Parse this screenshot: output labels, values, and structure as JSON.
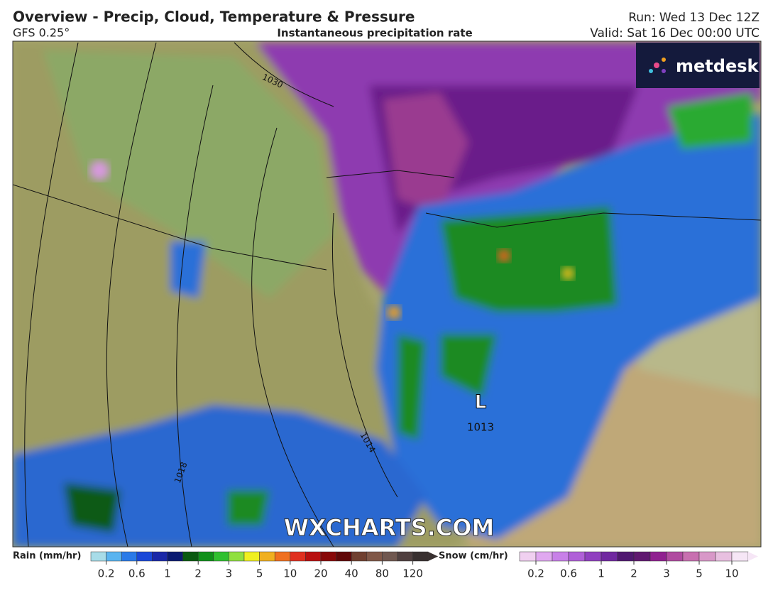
{
  "header": {
    "title": "Overview - Precip, Cloud, Temperature & Pressure",
    "model": "GFS 0.25°",
    "product": "Instantaneous precipitation rate",
    "run": "Run: Wed 13 Dec 12Z",
    "valid": "Valid: Sat 16 Dec 00:00 UTC"
  },
  "logo": "metdesk",
  "watermark": "WXCHARTS.COM",
  "map": {
    "isobar_labels": [
      "1030",
      "1014",
      "1018"
    ],
    "low": {
      "symbol": "L",
      "pressure": "1013"
    }
  },
  "legend": {
    "rain": {
      "title": "Rain (mm/hr)",
      "ticks": [
        "0.2",
        "0.6",
        "1",
        "2",
        "3",
        "5",
        "10",
        "20",
        "40",
        "80",
        "120"
      ],
      "colors": [
        "#a8dce8",
        "#5ab4f0",
        "#2a7ae8",
        "#1a48d8",
        "#1a28a8",
        "#0a1a70",
        "#0a5a10",
        "#10901a",
        "#30c030",
        "#90e040",
        "#f0f020",
        "#f0b020",
        "#f07020",
        "#e03020",
        "#b81010",
        "#880808",
        "#600808",
        "#704030",
        "#805848",
        "#705850",
        "#504040",
        "#383030"
      ]
    },
    "snow": {
      "title": "Snow (cm/hr)",
      "ticks": [
        "0.2",
        "0.6",
        "1",
        "2",
        "3",
        "5",
        "10"
      ],
      "colors": [
        "#f0d0f0",
        "#e0a8f0",
        "#c880e8",
        "#b060d8",
        "#9040c0",
        "#7028a0",
        "#501870",
        "#601870",
        "#902090",
        "#b04aa0",
        "#c870b0",
        "#d898c8",
        "#e8c0e0",
        "#f6e6f6"
      ]
    }
  }
}
